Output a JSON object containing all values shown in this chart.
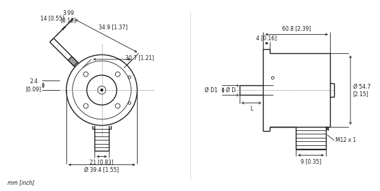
{
  "bg_color": "#ffffff",
  "line_color": "#1a1a1a",
  "text_color": "#1a1a1a",
  "figsize": [
    5.55,
    2.8
  ],
  "dpi": 100,
  "annotations": {
    "dim_14": "14 [0.55]",
    "dim_2_4": "2.4\n[0.09]",
    "dim_3_99": "3.99\n[0.16]",
    "dim_34_9": "34.9 [1.37]",
    "dim_30_7": "30.7 [1.21]",
    "dim_21": "21 [0.83]",
    "dim_39_4": "Ø 39.4 [1.55]",
    "dim_60_8": "60.8 [2.39]",
    "dim_4": "4 [0.16]",
    "dim_D1": "Ø D1",
    "dim_D": "Ø D",
    "dim_L": "L",
    "dim_54_7": "Ø 54.7\n[2.15]",
    "dim_M12": "M12 x 1",
    "dim_9": "9 [0.35]",
    "unit": "mm [inch]"
  }
}
